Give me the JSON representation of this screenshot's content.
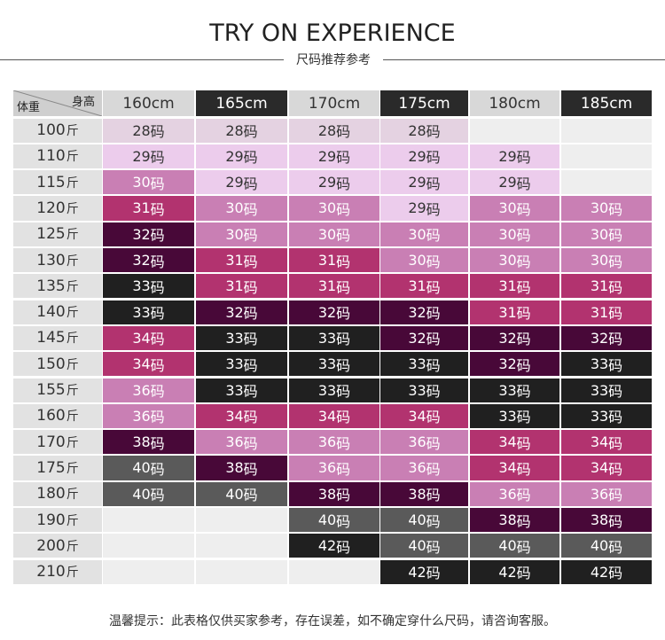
{
  "title": "TRY ON EXPERIENCE",
  "subtitle": "尺码推荐参考",
  "corner": {
    "height_label": "身高",
    "weight_label": "体重"
  },
  "heights": [
    "160cm",
    "165cm",
    "170cm",
    "175cm",
    "180cm",
    "185cm"
  ],
  "header_styles": [
    "light",
    "dark",
    "light",
    "dark",
    "light",
    "dark"
  ],
  "weight_unit": "斤",
  "size_suffix": "码",
  "weights": [
    "100",
    "110",
    "115",
    "120",
    "125",
    "130",
    "135",
    "140",
    "145",
    "150",
    "155",
    "160",
    "170",
    "175",
    "180",
    "190",
    "200",
    "210"
  ],
  "sizes": [
    [
      "28",
      "28",
      "28",
      "28",
      "",
      ""
    ],
    [
      "29",
      "29",
      "29",
      "29",
      "29",
      ""
    ],
    [
      "30",
      "29",
      "29",
      "29",
      "29",
      ""
    ],
    [
      "31",
      "30",
      "30",
      "29",
      "30",
      "30"
    ],
    [
      "32",
      "30",
      "30",
      "30",
      "30",
      "30"
    ],
    [
      "32",
      "31",
      "31",
      "30",
      "30",
      "30"
    ],
    [
      "33",
      "31",
      "31",
      "31",
      "31",
      "31"
    ],
    [
      "33",
      "32",
      "32",
      "32",
      "31",
      "31"
    ],
    [
      "34",
      "33",
      "33",
      "32",
      "32",
      "32"
    ],
    [
      "34",
      "33",
      "33",
      "33",
      "32",
      "33"
    ],
    [
      "36",
      "33",
      "33",
      "33",
      "33",
      "33"
    ],
    [
      "36",
      "34",
      "34",
      "34",
      "33",
      "33"
    ],
    [
      "38",
      "36",
      "36",
      "36",
      "34",
      "34"
    ],
    [
      "40",
      "38",
      "36",
      "36",
      "34",
      "34"
    ],
    [
      "40",
      "40",
      "38",
      "38",
      "36",
      "36"
    ],
    [
      "",
      "",
      "40",
      "40",
      "38",
      "38"
    ],
    [
      "",
      "",
      "42",
      "40",
      "40",
      "40"
    ],
    [
      "",
      "",
      "",
      "42",
      "42",
      "42"
    ]
  ],
  "size_colors": {
    "28": "#e4d2e1",
    "29": "#ecccec",
    "30": "#c97fb4",
    "31": "#b2336f",
    "32": "#480838",
    "33": "#202020",
    "34": "#b2336f",
    "36": "#c97fb4",
    "38": "#480838",
    "40": "#5a5a5a",
    "42": "#202020",
    "empty": "#eeeeee"
  },
  "header_colors": {
    "light": "#d8d8d8",
    "dark": "#2a2a2a"
  },
  "footer": "温馨提示：此表格仅供买家参考，存在误差，如不确定穿什么尺码，请咨询客服。"
}
